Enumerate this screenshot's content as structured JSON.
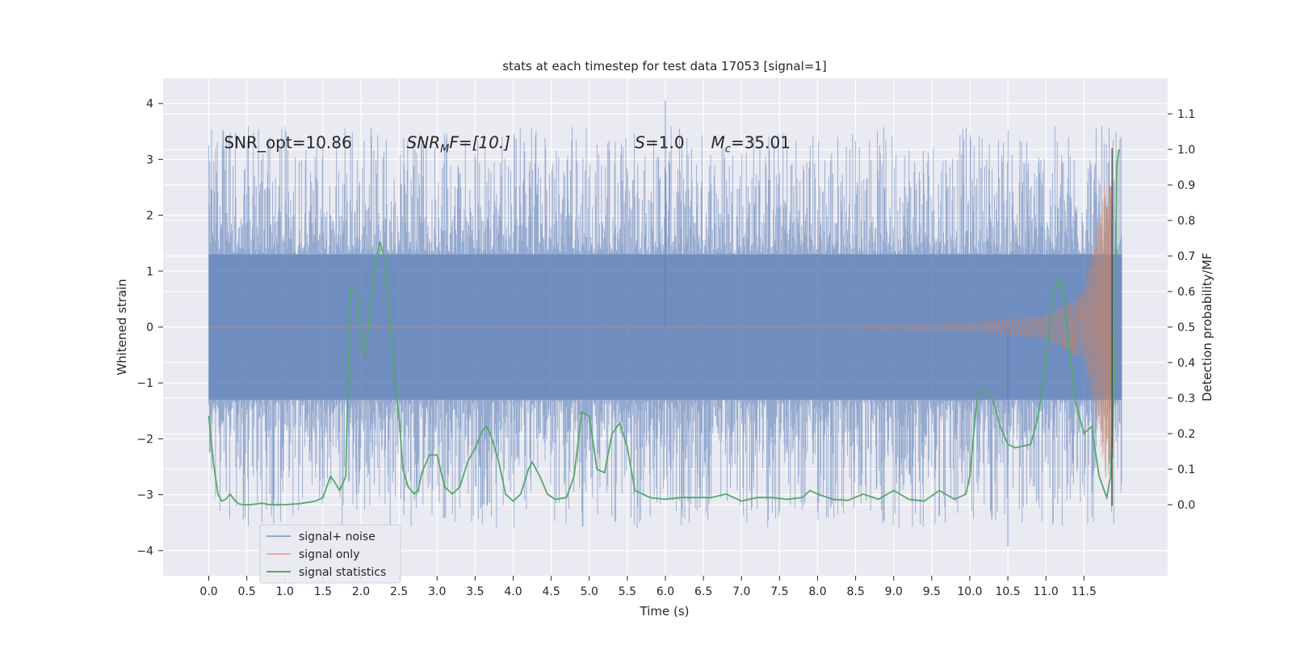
{
  "chart_data": {
    "type": "line",
    "title": "stats at each timestep for test data 17053 [signal=1]",
    "xlabel": "Time (s)",
    "ylabel_left": "Whitened strain",
    "ylabel_right": "Detection probability/MF",
    "xlim": [
      -0.6,
      12.6
    ],
    "ylim_left": [
      -4.45,
      4.45
    ],
    "ylim_right": [
      -0.2,
      1.2
    ],
    "x_ticks": [
      0.0,
      0.5,
      1.0,
      1.5,
      2.0,
      2.5,
      3.0,
      3.5,
      4.0,
      4.5,
      5.0,
      5.5,
      6.0,
      6.5,
      7.0,
      7.5,
      8.0,
      8.5,
      9.0,
      9.5,
      10.0,
      10.5,
      11.0,
      11.5
    ],
    "x_tick_labels": [
      "0.0",
      "0.5",
      "1.0",
      "1.5",
      "2.0",
      "2.5",
      "3.0",
      "3.5",
      "4.0",
      "4.5",
      "5.0",
      "5.5",
      "6.0",
      "6.5",
      "7.0",
      "7.5",
      "8.0",
      "8.5",
      "9.0",
      "9.5",
      "10.0",
      "10.5",
      "11.0",
      "11.5"
    ],
    "y_left_ticks": [
      4,
      3,
      2,
      1,
      0,
      -1,
      -2,
      -3,
      -4
    ],
    "y_left_tick_labels": [
      "4",
      "3",
      "2",
      "1",
      "0",
      "−1",
      "−2",
      "−3",
      "−4"
    ],
    "y_right_ticks": [
      1.1,
      1.0,
      0.9,
      0.8,
      0.7,
      0.6,
      0.5,
      0.4,
      0.3,
      0.2,
      0.1,
      0.0
    ],
    "y_right_tick_labels": [
      "1.1",
      "1.0",
      "0.9",
      "0.8",
      "0.7",
      "0.6",
      "0.5",
      "0.4",
      "0.3",
      "0.2",
      "0.1",
      "0.0"
    ],
    "annotations": [
      {
        "text": "SNR_opt=10.86",
        "x": 0.2,
        "y": 3.2
      },
      {
        "text": "SNR",
        "sub": "M",
        "rest": "F=[10.]",
        "x": 2.6,
        "y": 3.2
      },
      {
        "text": "S",
        "rest": "=1.0",
        "x": 5.6,
        "y": 3.2
      },
      {
        "text": "M",
        "sub": "c",
        "rest": "=35.01",
        "x": 6.6,
        "y": 3.2
      }
    ],
    "series": [
      {
        "name": "signal+ noise",
        "color": "#4c72b0",
        "axis": "left",
        "x_range": [
          0.0,
          12.0
        ],
        "envelope_typical": [
          -1.3,
          1.3
        ],
        "peak_max": 4.05,
        "peak_min": -3.93
      },
      {
        "name": "signal only",
        "color": "#dd8452",
        "axis": "left",
        "x_range": [
          0.0,
          11.87
        ],
        "amplitude_at": [
          [
            7.5,
            0.02
          ],
          [
            10.0,
            0.08
          ],
          [
            11.0,
            0.2
          ],
          [
            11.5,
            0.6
          ],
          [
            11.7,
            2.0
          ],
          [
            11.8,
            2.9
          ]
        ]
      },
      {
        "name": "signal statistics",
        "color": "#55a868",
        "axis": "right",
        "x": [
          0.0,
          0.06,
          0.12,
          0.17,
          0.22,
          0.28,
          0.35,
          0.4,
          0.45,
          0.55,
          0.7,
          0.8,
          1.0,
          1.2,
          1.4,
          1.5,
          1.6,
          1.65,
          1.72,
          1.8,
          1.86,
          1.9,
          1.95,
          2.0,
          2.05,
          2.12,
          2.2,
          2.25,
          2.32,
          2.4,
          2.5,
          2.55,
          2.62,
          2.7,
          2.75,
          2.8,
          2.9,
          3.0,
          3.1,
          3.2,
          3.3,
          3.4,
          3.5,
          3.6,
          3.65,
          3.7,
          3.8,
          3.9,
          4.0,
          4.1,
          4.2,
          4.25,
          4.35,
          4.45,
          4.55,
          4.7,
          4.8,
          4.9,
          5.0,
          5.1,
          5.2,
          5.3,
          5.4,
          5.5,
          5.6,
          5.7,
          5.8,
          6.0,
          6.2,
          6.4,
          6.6,
          6.8,
          7.0,
          7.2,
          7.4,
          7.6,
          7.8,
          7.9,
          8.0,
          8.2,
          8.4,
          8.6,
          8.8,
          9.0,
          9.2,
          9.4,
          9.6,
          9.8,
          9.95,
          10.0,
          10.1,
          10.2,
          10.3,
          10.4,
          10.5,
          10.6,
          10.8,
          10.9,
          11.0,
          11.1,
          11.2,
          11.25,
          11.3,
          11.4,
          11.5,
          11.6,
          11.7,
          11.8,
          11.85,
          11.9,
          11.93,
          11.96
        ],
        "y": [
          0.25,
          0.12,
          0.03,
          0.01,
          0.015,
          0.03,
          0.01,
          0.002,
          0.0,
          0.0,
          0.004,
          0.0,
          0.0,
          0.003,
          0.01,
          0.02,
          0.08,
          0.065,
          0.04,
          0.08,
          0.61,
          0.61,
          0.6,
          0.45,
          0.42,
          0.55,
          0.69,
          0.74,
          0.68,
          0.45,
          0.25,
          0.1,
          0.05,
          0.03,
          0.04,
          0.09,
          0.14,
          0.14,
          0.05,
          0.03,
          0.05,
          0.12,
          0.16,
          0.21,
          0.22,
          0.2,
          0.13,
          0.03,
          0.01,
          0.03,
          0.1,
          0.12,
          0.08,
          0.03,
          0.015,
          0.02,
          0.08,
          0.26,
          0.25,
          0.1,
          0.09,
          0.2,
          0.23,
          0.16,
          0.04,
          0.03,
          0.02,
          0.015,
          0.02,
          0.02,
          0.02,
          0.03,
          0.01,
          0.02,
          0.02,
          0.015,
          0.02,
          0.04,
          0.03,
          0.015,
          0.012,
          0.03,
          0.015,
          0.04,
          0.015,
          0.01,
          0.04,
          0.015,
          0.03,
          0.08,
          0.31,
          0.32,
          0.3,
          0.22,
          0.17,
          0.16,
          0.17,
          0.25,
          0.4,
          0.6,
          0.64,
          0.57,
          0.45,
          0.28,
          0.2,
          0.22,
          0.08,
          0.02,
          0.08,
          0.35,
          0.95,
          1.0
        ]
      }
    ],
    "legend": {
      "placement": "lower-left"
    }
  }
}
